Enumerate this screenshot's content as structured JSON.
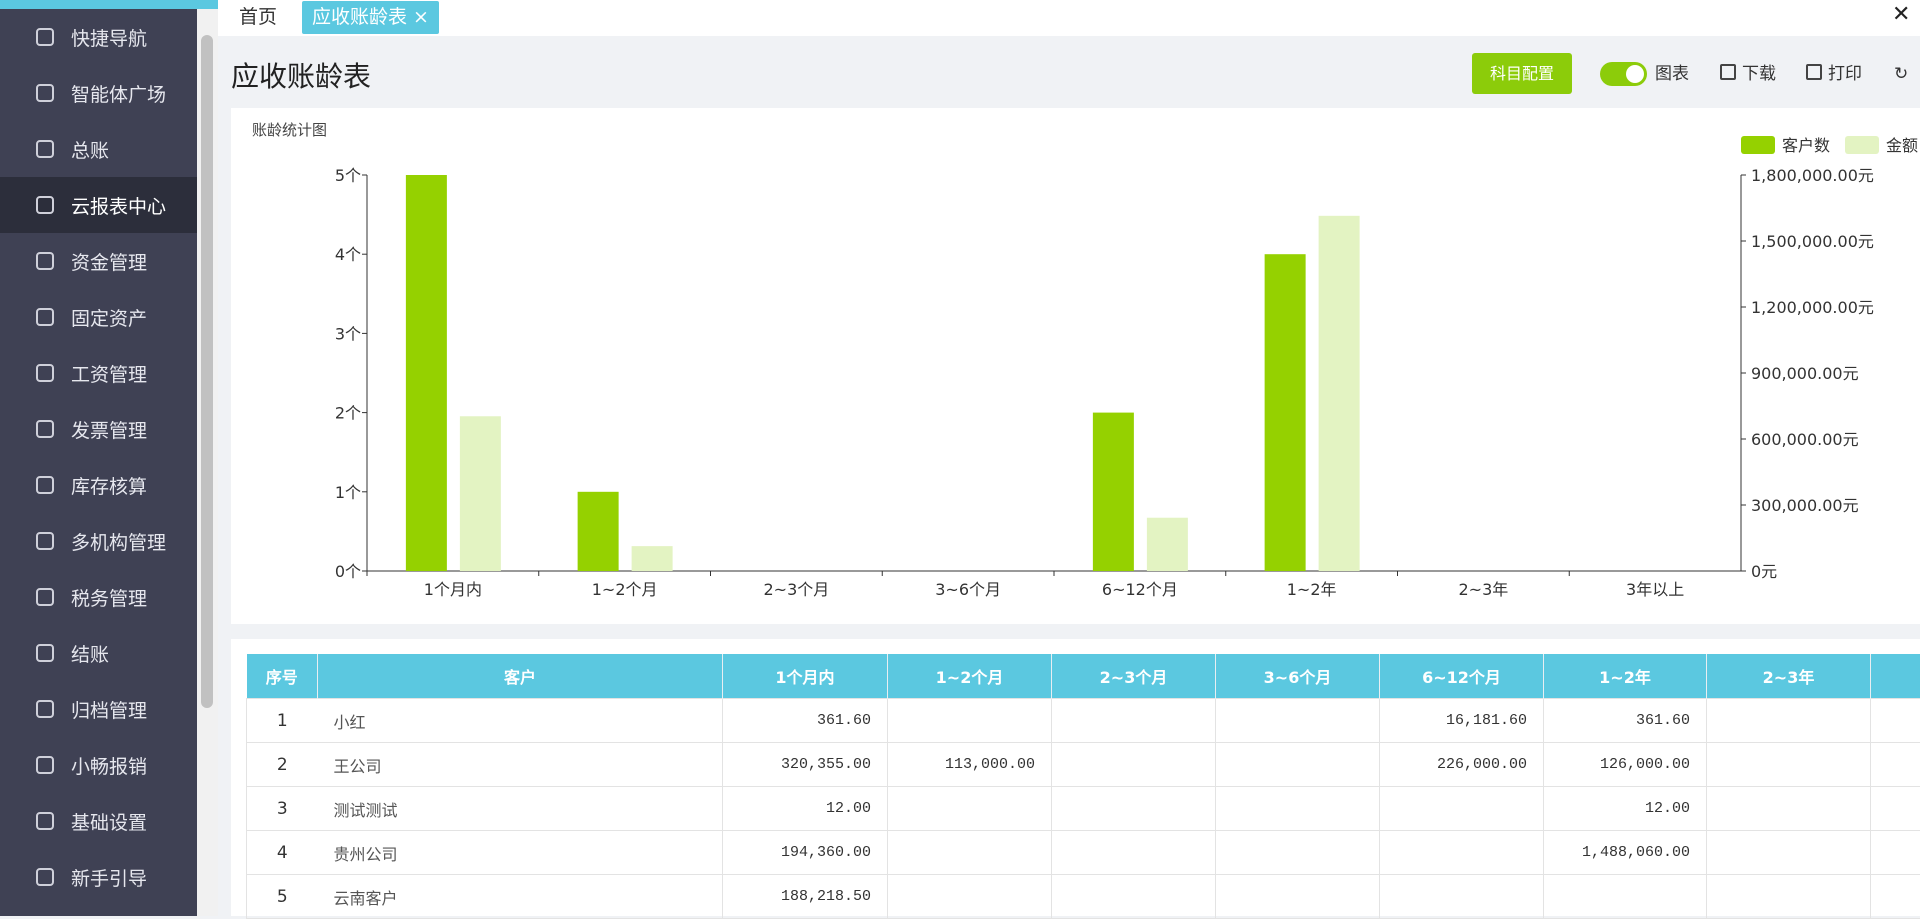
{
  "sidebar": {
    "items": [
      "快捷导航",
      "智能体广场",
      "总账",
      "云报表中心",
      "资金管理",
      "固定资产",
      "工资管理",
      "发票管理",
      "库存核算",
      "多机构管理",
      "税务管理",
      "结账",
      "归档管理",
      "小畅报销",
      "基础设置",
      "新手引导"
    ],
    "active": 3
  },
  "tabs": [
    "首页",
    "应收账龄表"
  ],
  "header": {
    "title": "应收账龄表",
    "buttons": [
      "科目配置",
      "图表",
      "下载",
      "打印"
    ]
  },
  "chart_data": {
    "type": "bar",
    "title": "账龄统计图",
    "categories": [
      "1个月内",
      "1~2个月",
      "2~3个月",
      "3~6个月",
      "6~12个月",
      "1~2年",
      "2~3年",
      "3年以上"
    ],
    "series": [
      {
        "name": "客户数",
        "color": "#95d100",
        "values": [
          5,
          1,
          0,
          0,
          2,
          4,
          0,
          0
        ]
      },
      {
        "name": "金额",
        "color": "#e3f3c2",
        "axis": "y2",
        "values": [
          703307.1,
          113000,
          0,
          0,
          242181.6,
          1614433.6,
          0,
          0
        ]
      }
    ],
    "ylim": [
      0,
      5
    ],
    "yticks": [
      {
        "value": 0,
        "label": "0个"
      },
      {
        "value": 1,
        "label": "1个"
      },
      {
        "value": 2,
        "label": "2个"
      },
      {
        "value": 3,
        "label": "3个"
      },
      {
        "value": 4,
        "label": "4个"
      },
      {
        "value": 5,
        "label": "5个"
      }
    ],
    "y2lim": [
      0,
      1800000
    ],
    "y2ticks": [
      {
        "value": 0,
        "label": "0元"
      },
      {
        "value": 300000,
        "label": "300,000.00元"
      },
      {
        "value": 600000,
        "label": "600,000.00元"
      },
      {
        "value": 900000,
        "label": "900,000.00元"
      },
      {
        "value": 1200000,
        "label": "1,200,000.00元"
      },
      {
        "value": 1500000,
        "label": "1,500,000.00元"
      },
      {
        "value": 1800000,
        "label": "1,800,000.00元"
      }
    ],
    "legend": "top-right",
    "grid": false
  },
  "table": {
    "headers": [
      "序号",
      "客户",
      "1个月内",
      "1~2个月",
      "2~3个月",
      "3~6个月",
      "6~12个月",
      "1~2年",
      "2~3年"
    ],
    "rows": [
      [
        "1",
        "小红",
        "361.60",
        null,
        null,
        null,
        "16,181.60",
        "361.60",
        null
      ],
      [
        "2",
        "王公司",
        "320,355.00",
        "113,000.00",
        null,
        null,
        "226,000.00",
        "126,000.00",
        null
      ],
      [
        "3",
        "测试测试",
        "12.00",
        null,
        null,
        null,
        null,
        "12.00",
        null
      ],
      [
        "4",
        "贵州公司",
        "194,360.00",
        null,
        null,
        null,
        null,
        "1,488,060.00",
        null
      ],
      [
        "5",
        "云南客户",
        "188,218.50",
        null,
        null,
        null,
        null,
        null,
        null
      ]
    ]
  }
}
